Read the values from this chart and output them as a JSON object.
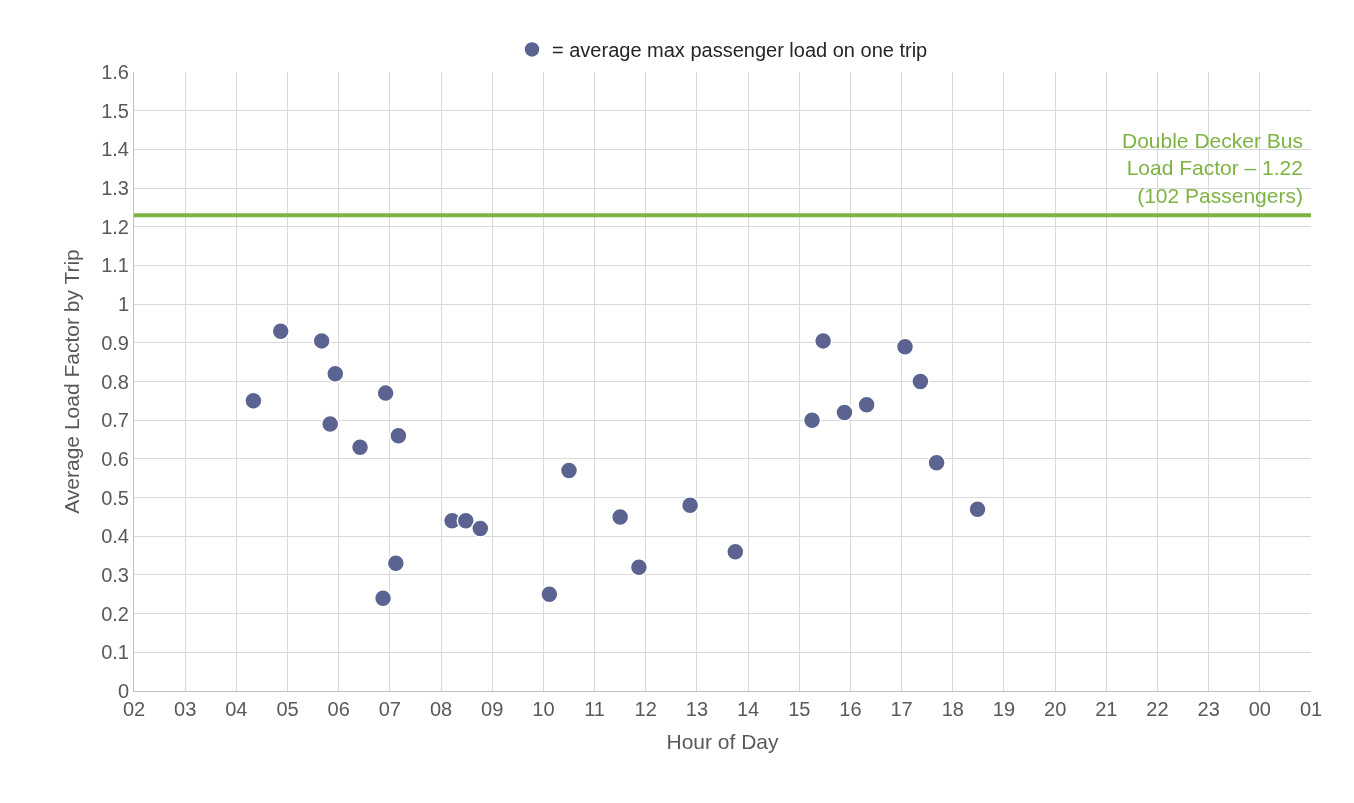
{
  "chart_data": {
    "type": "scatter",
    "xlabel": "Hour of Day",
    "ylabel": "Average Load Factor by Trip",
    "xlim": [
      "--01-01T02:00",
      "--01-02T01:00"
    ],
    "xticks": [
      {
        "value": "--01-01T02:00",
        "label": "02"
      },
      {
        "value": "--01-01T03:00",
        "label": "03"
      },
      {
        "value": "--01-01T04:00",
        "label": "04"
      },
      {
        "value": "--01-01T05:00",
        "label": "05"
      },
      {
        "value": "--01-01T06:00",
        "label": "06"
      },
      {
        "value": "--01-01T07:00",
        "label": "07"
      },
      {
        "value": "--01-01T08:00",
        "label": "08"
      },
      {
        "value": "--01-01T09:00",
        "label": "09"
      },
      {
        "value": "--01-01T10:00",
        "label": "10"
      },
      {
        "value": "--01-01T11:00",
        "label": "11"
      },
      {
        "value": "--01-01T12:00",
        "label": "12"
      },
      {
        "value": "--01-01T13:00",
        "label": "13"
      },
      {
        "value": "--01-01T14:00",
        "label": "14"
      },
      {
        "value": "--01-01T15:00",
        "label": "15"
      },
      {
        "value": "--01-01T16:00",
        "label": "16"
      },
      {
        "value": "--01-01T17:00",
        "label": "17"
      },
      {
        "value": "--01-01T18:00",
        "label": "18"
      },
      {
        "value": "--01-01T19:00",
        "label": "19"
      },
      {
        "value": "--01-01T20:00",
        "label": "20"
      },
      {
        "value": "--01-01T21:00",
        "label": "21"
      },
      {
        "value": "--01-01T22:00",
        "label": "22"
      },
      {
        "value": "--01-01T23:00",
        "label": "23"
      },
      {
        "value": "--01-02T00:00",
        "label": "00"
      },
      {
        "value": "--01-02T01:00",
        "label": "01"
      }
    ],
    "ylim": [
      0,
      1.6
    ],
    "yticks": [
      0,
      0.1,
      0.2,
      0.3,
      0.4,
      0.5,
      0.6,
      0.7,
      0.8,
      0.9,
      1,
      1.1,
      1.2,
      1.3,
      1.4,
      1.5,
      1.6
    ],
    "grid": true,
    "legend": "top",
    "marker": "circle",
    "series": [
      {
        "name": "= average max passenger load on one trip",
        "color": "#5b6390",
        "x": [
          "--01-01T04:20",
          "--01-01T04:52",
          "--01-01T05:40",
          "--01-01T05:56",
          "--01-01T05:50",
          "--01-01T06:25",
          "--01-01T06:55",
          "--01-01T07:10",
          "--01-01T06:52",
          "--01-01T07:07",
          "--01-01T08:13",
          "--01-01T08:29",
          "--01-01T08:46",
          "--01-01T10:07",
          "--01-01T10:30",
          "--01-01T11:30",
          "--01-01T11:52",
          "--01-01T12:52",
          "--01-01T13:45",
          "--01-01T15:15",
          "--01-01T15:28",
          "--01-01T15:53",
          "--01-01T16:19",
          "--01-01T17:04",
          "--01-01T17:22",
          "--01-01T17:41",
          "--01-01T18:29"
        ],
        "values": [
          0.75,
          0.93,
          0.905,
          0.82,
          0.69,
          0.63,
          0.77,
          0.66,
          0.24,
          0.33,
          0.44,
          0.44,
          0.42,
          0.25,
          0.57,
          0.45,
          0.32,
          0.48,
          0.36,
          0.7,
          0.905,
          0.72,
          0.74,
          0.89,
          0.8,
          0.59,
          0.47
        ]
      }
    ],
    "ref_lines": [
      {
        "axis": "y",
        "value": 1.23,
        "label": "Double Decker Bus\nLoad Factor – 1.22\n(102 Passengers)",
        "color": "#7cb342",
        "line_style": "solid"
      }
    ]
  }
}
